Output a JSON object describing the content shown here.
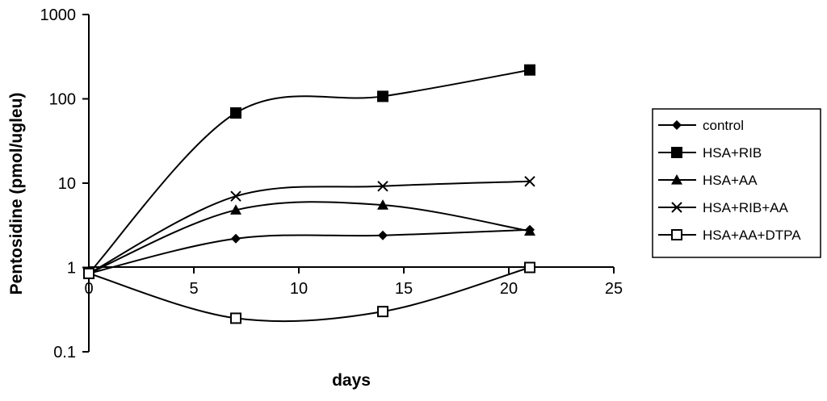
{
  "chart_data": {
    "type": "line",
    "title": "",
    "xlabel": "days",
    "ylabel": "Pentosidine (pmol/ugleu)",
    "xlim": [
      0,
      25
    ],
    "ylim": [
      0.1,
      1000
    ],
    "y_scale": "log",
    "x_ticks": [
      "0",
      "5",
      "10",
      "15",
      "20",
      "25"
    ],
    "y_ticks": [
      "0.1",
      "1",
      "10",
      "100",
      "1000"
    ],
    "grid": false,
    "legend_position": "right",
    "series": [
      {
        "name": "control",
        "marker": "diamond",
        "x": [
          0,
          7,
          14,
          21
        ],
        "y": [
          0.85,
          2.2,
          2.4,
          2.8
        ]
      },
      {
        "name": "HSA+RIB",
        "marker": "square",
        "x": [
          0,
          7,
          14,
          21
        ],
        "y": [
          0.85,
          68,
          107,
          220
        ]
      },
      {
        "name": "HSA+AA",
        "marker": "triangle",
        "x": [
          0,
          7,
          14,
          21
        ],
        "y": [
          0.85,
          4.8,
          5.5,
          2.7
        ]
      },
      {
        "name": "HSA+RIB+AA",
        "marker": "x",
        "x": [
          0,
          7,
          14,
          21
        ],
        "y": [
          0.85,
          7.0,
          9.2,
          10.5
        ]
      },
      {
        "name": "HSA+AA+DTPA",
        "marker": "open-square",
        "x": [
          0,
          7,
          14,
          21
        ],
        "y": [
          0.85,
          0.25,
          0.3,
          1.0
        ]
      }
    ]
  }
}
